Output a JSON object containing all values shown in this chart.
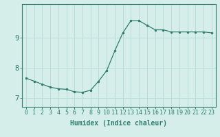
{
  "x": [
    0,
    1,
    2,
    3,
    4,
    5,
    6,
    7,
    8,
    9,
    10,
    11,
    12,
    13,
    14,
    15,
    16,
    17,
    18,
    19,
    20,
    21,
    22,
    23
  ],
  "y": [
    7.65,
    7.55,
    7.45,
    7.35,
    7.3,
    7.28,
    7.2,
    7.18,
    7.25,
    7.55,
    7.9,
    8.55,
    9.15,
    9.55,
    9.55,
    9.4,
    9.25,
    9.25,
    9.18,
    9.18,
    9.18,
    9.18,
    9.18,
    9.15
  ],
  "line_color": "#2e7d6e",
  "marker_color": "#2e7d6e",
  "bg_color": "#d6eeea",
  "grid_color": "#b8ddd7",
  "axis_color": "#2e7d6e",
  "xlabel": "Humidex (Indice chaleur)",
  "ylim": [
    6.7,
    10.1
  ],
  "xlim": [
    -0.5,
    23.5
  ],
  "yticks": [
    7,
    8,
    9
  ],
  "xticks": [
    0,
    1,
    2,
    3,
    4,
    5,
    6,
    7,
    8,
    9,
    10,
    11,
    12,
    13,
    14,
    15,
    16,
    17,
    18,
    19,
    20,
    21,
    22,
    23
  ],
  "tick_fontsize": 6.0,
  "label_fontsize": 7.0
}
